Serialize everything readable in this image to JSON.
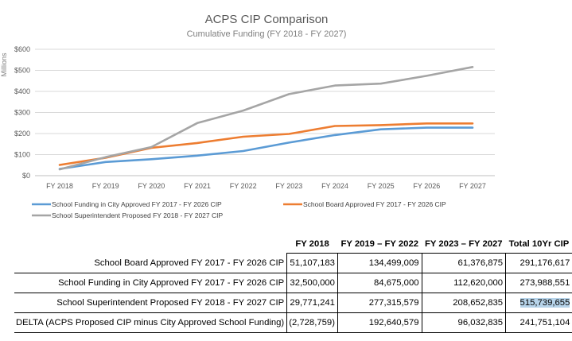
{
  "chart_data": {
    "type": "line",
    "title": "ACPS CIP Comparison",
    "subtitle": "Cumulative Funding (FY 2018 - FY 2027)",
    "ylabel": "Millions",
    "xlabel": "",
    "categories": [
      "FY 2018",
      "FY 2019",
      "FY 2020",
      "FY 2021",
      "FY 2022",
      "FY 2023",
      "FY 2024",
      "FY 2025",
      "FY 2026",
      "FY 2027"
    ],
    "ylim": [
      0,
      600
    ],
    "yticks": [
      "$0",
      "$100",
      "$200",
      "$300",
      "$400",
      "$500",
      "$600"
    ],
    "ytick_values": [
      0,
      100,
      200,
      300,
      400,
      500,
      600
    ],
    "grid": true,
    "legend_position": "bottom",
    "series": [
      {
        "name": "School Funding in City Approved FY 2017 - FY 2026 CIP",
        "color": "#5b9bd5",
        "values": [
          32,
          65,
          78,
          95,
          117,
          157,
          193,
          220,
          228,
          228
        ]
      },
      {
        "name": "School Board Approved FY 2017 - FY 2026 CIP",
        "color": "#ed7d31",
        "values": [
          51,
          85,
          132,
          155,
          185,
          198,
          236,
          240,
          248,
          248
        ]
      },
      {
        "name": "School Superintendent Proposed FY 2018 - FY 2027 CIP",
        "color": "#a5a5a5",
        "values": [
          30,
          88,
          136,
          250,
          309,
          387,
          428,
          437,
          474,
          516
        ]
      }
    ]
  },
  "table": {
    "headers": [
      "FY 2018",
      "FY 2019 – FY 2022",
      "FY 2023 – FY 2027",
      "Total 10Yr CIP"
    ],
    "rows": [
      {
        "label": "School Board Approved FY 2017 - FY 2026 CIP",
        "values": [
          "51,107,183",
          "134,499,009",
          "61,376,875",
          "291,176,617"
        ]
      },
      {
        "label": "School Funding in City Approved FY 2017 - FY 2026 CIP",
        "values": [
          "32,500,000",
          "84,675,000",
          "112,620,000",
          "273,988,551"
        ]
      },
      {
        "label": "School Superintendent Proposed FY 2018 - FY 2027 CIP",
        "values": [
          "29,771,241",
          "277,315,579",
          "208,652,835",
          "515,739,655"
        ]
      },
      {
        "label": "DELTA (ACPS Proposed CIP minus City Approved School Funding)",
        "values": [
          "(2,728,759)",
          "192,640,579",
          "96,032,835",
          "241,751,104"
        ]
      }
    ]
  }
}
